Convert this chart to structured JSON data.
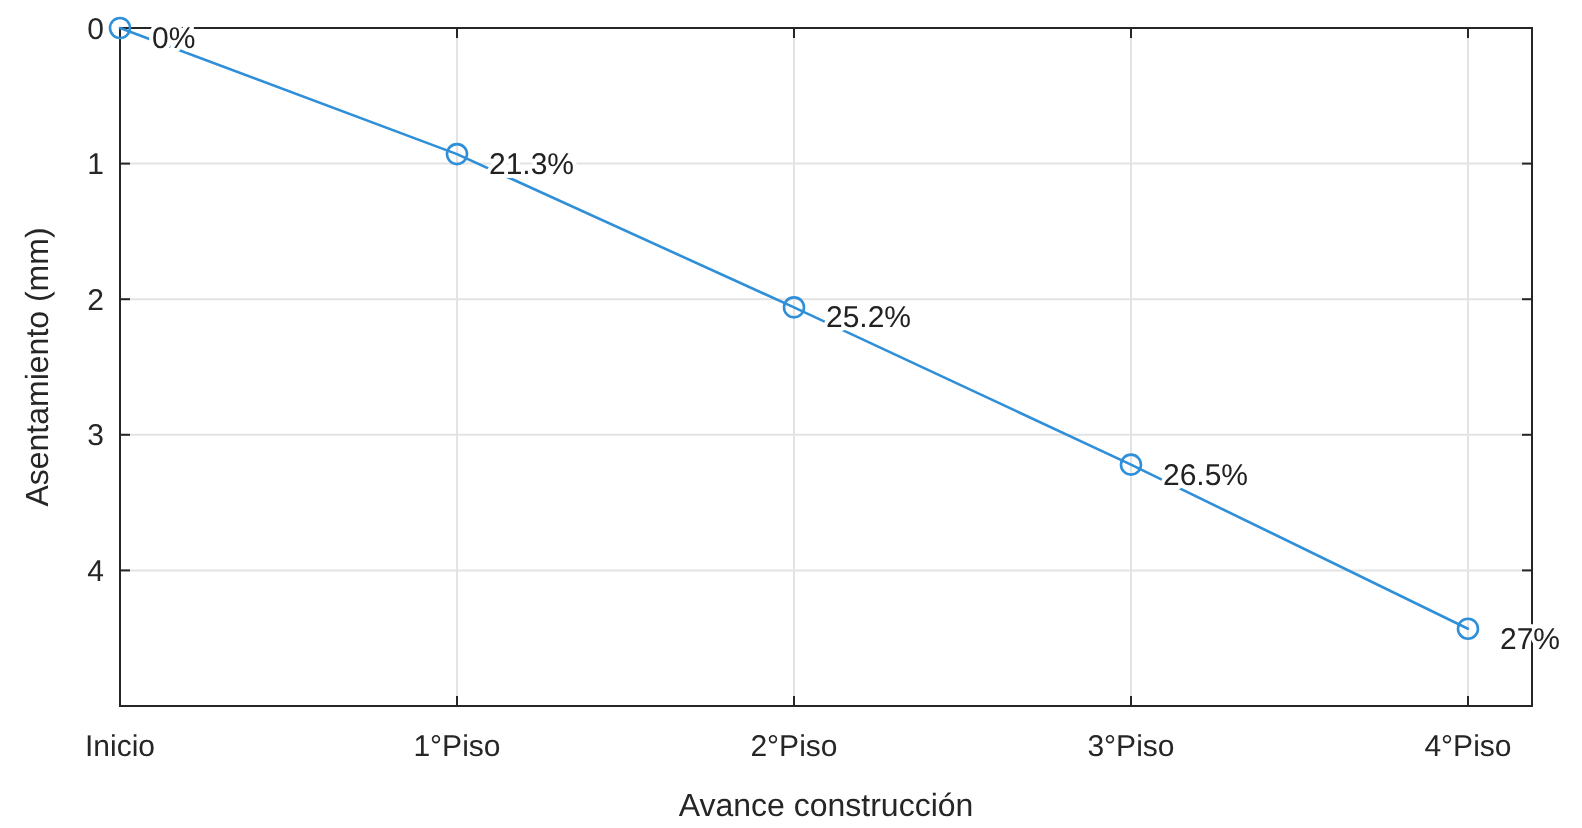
{
  "chart_data": {
    "type": "line",
    "xlabel": "Avance construcción",
    "ylabel": "Asentamiento (mm)",
    "categories": [
      "Inicio",
      "1°Piso",
      "2°Piso",
      "3°Piso",
      "4°Piso"
    ],
    "series": [
      {
        "color": "#2f8fd8",
        "values": [
          0,
          0.93,
          2.06,
          3.22,
          4.43
        ]
      }
    ],
    "annotations": [
      {
        "text": "0%",
        "x": "Inicio",
        "y": 0
      },
      {
        "text": "21.3%",
        "x": "1°Piso",
        "y": 0.93
      },
      {
        "text": "25.2%",
        "x": "2°Piso",
        "y": 2.06
      },
      {
        "text": "26.5%",
        "x": "3°Piso",
        "y": 3.22
      },
      {
        "text": "27%",
        "x": "4°Piso",
        "y": 4.43
      }
    ],
    "ylim": [
      5,
      0
    ],
    "yticks": [
      0,
      1,
      2,
      3,
      4
    ],
    "grid": true,
    "marker": "circle",
    "line_style": "solid"
  }
}
